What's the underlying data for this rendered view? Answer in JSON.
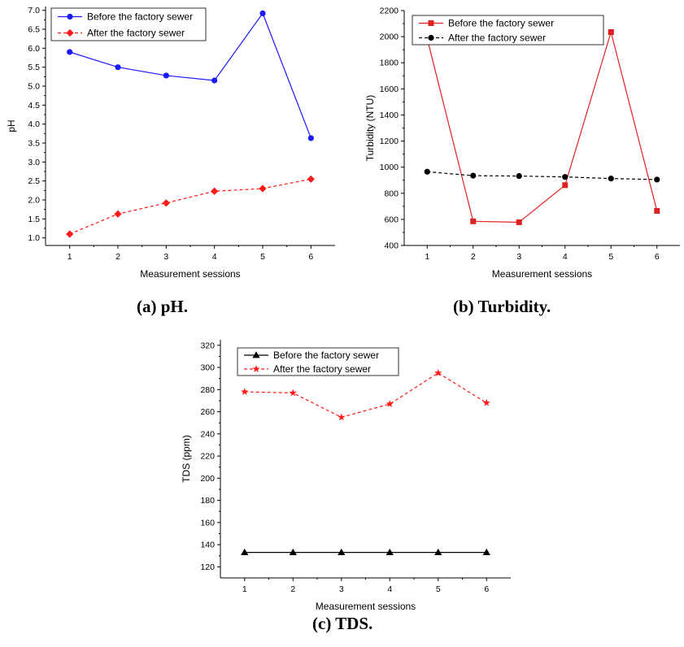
{
  "captions": {
    "a": "(a) pH.",
    "b": "(b) Turbidity.",
    "c": "(c) TDS."
  },
  "chart_data": [
    {
      "type": "line",
      "id": "a",
      "xlabel": "Measurement sessions",
      "ylabel": "pH",
      "x": [
        1,
        2,
        3,
        4,
        5,
        6
      ],
      "xlim": [
        0.5,
        6.5
      ],
      "ylim": [
        0.8,
        7.1
      ],
      "yticks": [
        "1.0",
        "1.5",
        "2.0",
        "2.5",
        "3.0",
        "3.5",
        "4.0",
        "4.5",
        "5.0",
        "5.5",
        "6.0",
        "6.5",
        "7.0"
      ],
      "grid": false,
      "legend": "top-left",
      "series": [
        {
          "name": "Before the factory sewer",
          "values": [
            5.9,
            5.5,
            5.28,
            5.15,
            6.92,
            3.63
          ],
          "color": "#1a1aff",
          "marker": "circle",
          "dash": "solid"
        },
        {
          "name": "After the factory sewer",
          "values": [
            1.1,
            1.63,
            1.92,
            2.23,
            2.3,
            2.55
          ],
          "color": "#ff1a1a",
          "marker": "diamond",
          "dash": "dashed"
        }
      ]
    },
    {
      "type": "line",
      "id": "b",
      "xlabel": "Measurement sessions",
      "ylabel": "Turbidity (NTU)",
      "x": [
        1,
        2,
        3,
        4,
        5,
        6
      ],
      "xlim": [
        0.5,
        6.5
      ],
      "ylim": [
        400,
        2200
      ],
      "yticks": [
        "400",
        "600",
        "800",
        "1000",
        "1200",
        "1400",
        "1600",
        "1800",
        "2000",
        "2200"
      ],
      "grid": false,
      "legend": "top-right",
      "series": [
        {
          "name": "Before the factory sewer",
          "values": [
            1985,
            585,
            578,
            862,
            2035,
            665
          ],
          "color": "#e02020",
          "marker": "square",
          "dash": "solid"
        },
        {
          "name": "After the factory sewer",
          "values": [
            965,
            935,
            932,
            925,
            913,
            905
          ],
          "color": "#000000",
          "marker": "circle",
          "dash": "dashed"
        }
      ]
    },
    {
      "type": "line",
      "id": "c",
      "xlabel": "Measurement sessions",
      "ylabel": "TDS (ppm)",
      "x": [
        1,
        2,
        3,
        4,
        5,
        6
      ],
      "xlim": [
        0.5,
        6.5
      ],
      "ylim": [
        110,
        325
      ],
      "yticks": [
        "120",
        "140",
        "160",
        "180",
        "200",
        "220",
        "240",
        "260",
        "280",
        "300",
        "320"
      ],
      "grid": false,
      "legend": "top-left",
      "series": [
        {
          "name": "Before the factory sewer",
          "values": [
            133,
            133,
            133,
            133,
            133,
            133
          ],
          "color": "#000000",
          "marker": "triangle",
          "dash": "solid"
        },
        {
          "name": "After the factory sewer",
          "values": [
            278,
            277,
            255,
            267,
            295,
            268
          ],
          "color": "#ff1a1a",
          "marker": "star",
          "dash": "dashed"
        }
      ]
    }
  ]
}
